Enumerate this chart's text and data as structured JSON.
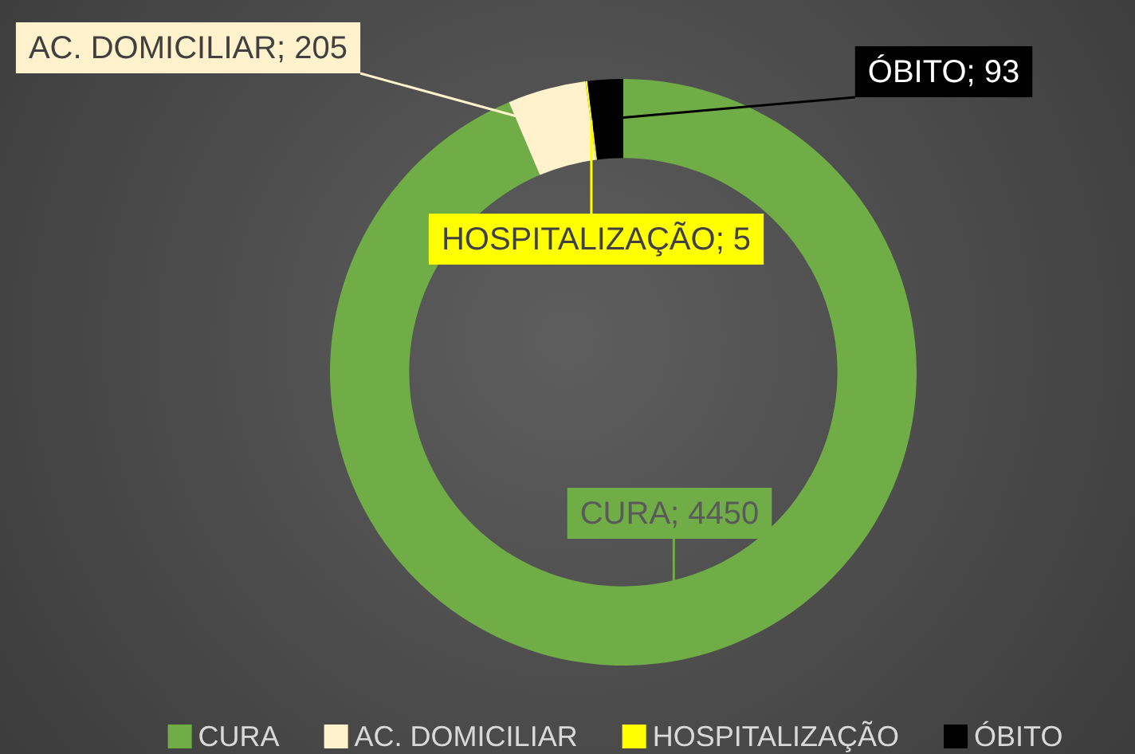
{
  "chart_data": {
    "type": "donut",
    "categories": [
      "CURA",
      "AC. DOMICILIAR",
      "HOSPITALIZAÇÃO",
      "ÓBITO"
    ],
    "values": [
      4450,
      205,
      5,
      93
    ],
    "colors": [
      "#70ad47",
      "#fff2cc",
      "#ffff00",
      "#000000"
    ],
    "value_labels": [
      "CURA; 4450",
      "AC. DOMICILIAR; 205",
      "HOSPITALIZAÇÃO; 5",
      "ÓBITO; 93"
    ],
    "legend": "bottom"
  }
}
